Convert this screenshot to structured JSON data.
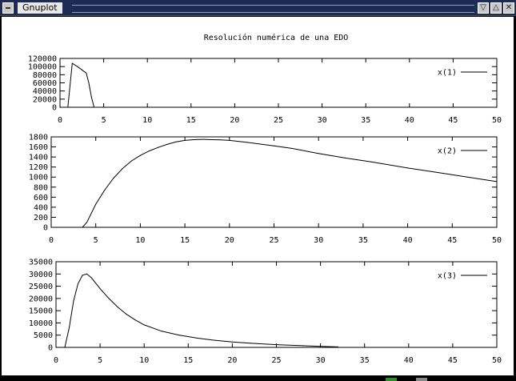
{
  "window": {
    "title": "Gnuplot",
    "buttons": [
      {
        "name": "minimize-button",
        "icon": "chevron-down-icon",
        "glyph": "▽"
      },
      {
        "name": "maximize-button",
        "icon": "chevron-up-icon",
        "glyph": "△"
      },
      {
        "name": "close-button",
        "icon": "close-icon",
        "glyph": "✕"
      }
    ]
  },
  "figure_title": "Resolución numérica de una EDO",
  "chart_data": [
    {
      "type": "line",
      "series": [
        {
          "name": "x(1)",
          "x": [
            0.9,
            1.4,
            2.0,
            2.5,
            3.0,
            3.3,
            3.6,
            3.9
          ],
          "y": [
            0,
            108000,
            100000,
            92000,
            84000,
            60000,
            25000,
            0
          ]
        }
      ],
      "xlim": [
        0,
        50
      ],
      "ylim": [
        0,
        120000
      ],
      "xticks": [
        0,
        5,
        10,
        15,
        20,
        25,
        30,
        35,
        40,
        45,
        50
      ],
      "yticks": [
        0,
        20000,
        40000,
        60000,
        80000,
        100000,
        120000
      ],
      "legend_position": "top-right",
      "grid": false
    },
    {
      "type": "line",
      "series": [
        {
          "name": "x(2)",
          "x": [
            3.5,
            4,
            5,
            6,
            7,
            8,
            9,
            10,
            11,
            12,
            13,
            14,
            15,
            16,
            17,
            18,
            19,
            20,
            22,
            25,
            27,
            30,
            33,
            36,
            40,
            43,
            46,
            50
          ],
          "y": [
            0,
            100,
            460,
            740,
            980,
            1170,
            1320,
            1430,
            1520,
            1590,
            1650,
            1700,
            1730,
            1745,
            1750,
            1745,
            1740,
            1730,
            1690,
            1620,
            1570,
            1470,
            1380,
            1300,
            1180,
            1100,
            1020,
            910
          ]
        }
      ],
      "xlim": [
        0,
        50
      ],
      "ylim": [
        0,
        1800
      ],
      "xticks": [
        0,
        5,
        10,
        15,
        20,
        25,
        30,
        35,
        40,
        45,
        50
      ],
      "yticks": [
        0,
        200,
        400,
        600,
        800,
        1000,
        1200,
        1400,
        1600,
        1800
      ],
      "legend_position": "top-right",
      "grid": false
    },
    {
      "type": "line",
      "series": [
        {
          "name": "x(3)",
          "x": [
            1,
            1.5,
            2,
            2.5,
            3,
            3.5,
            4,
            5,
            6,
            7,
            8,
            9,
            10,
            12,
            14,
            16,
            18,
            20,
            22,
            25,
            28,
            30,
            32
          ],
          "y": [
            0,
            8000,
            19000,
            26000,
            29500,
            30000,
            28500,
            24000,
            20000,
            16500,
            13500,
            11200,
            9200,
            6600,
            5000,
            3800,
            2900,
            2200,
            1700,
            1100,
            700,
            400,
            200
          ]
        }
      ],
      "xlim": [
        0,
        50
      ],
      "ylim": [
        0,
        35000
      ],
      "xticks": [
        0,
        5,
        10,
        15,
        20,
        25,
        30,
        35,
        40,
        45,
        50
      ],
      "yticks": [
        0,
        5000,
        10000,
        15000,
        20000,
        25000,
        30000,
        35000
      ],
      "legend_position": "top-right",
      "grid": false
    }
  ]
}
